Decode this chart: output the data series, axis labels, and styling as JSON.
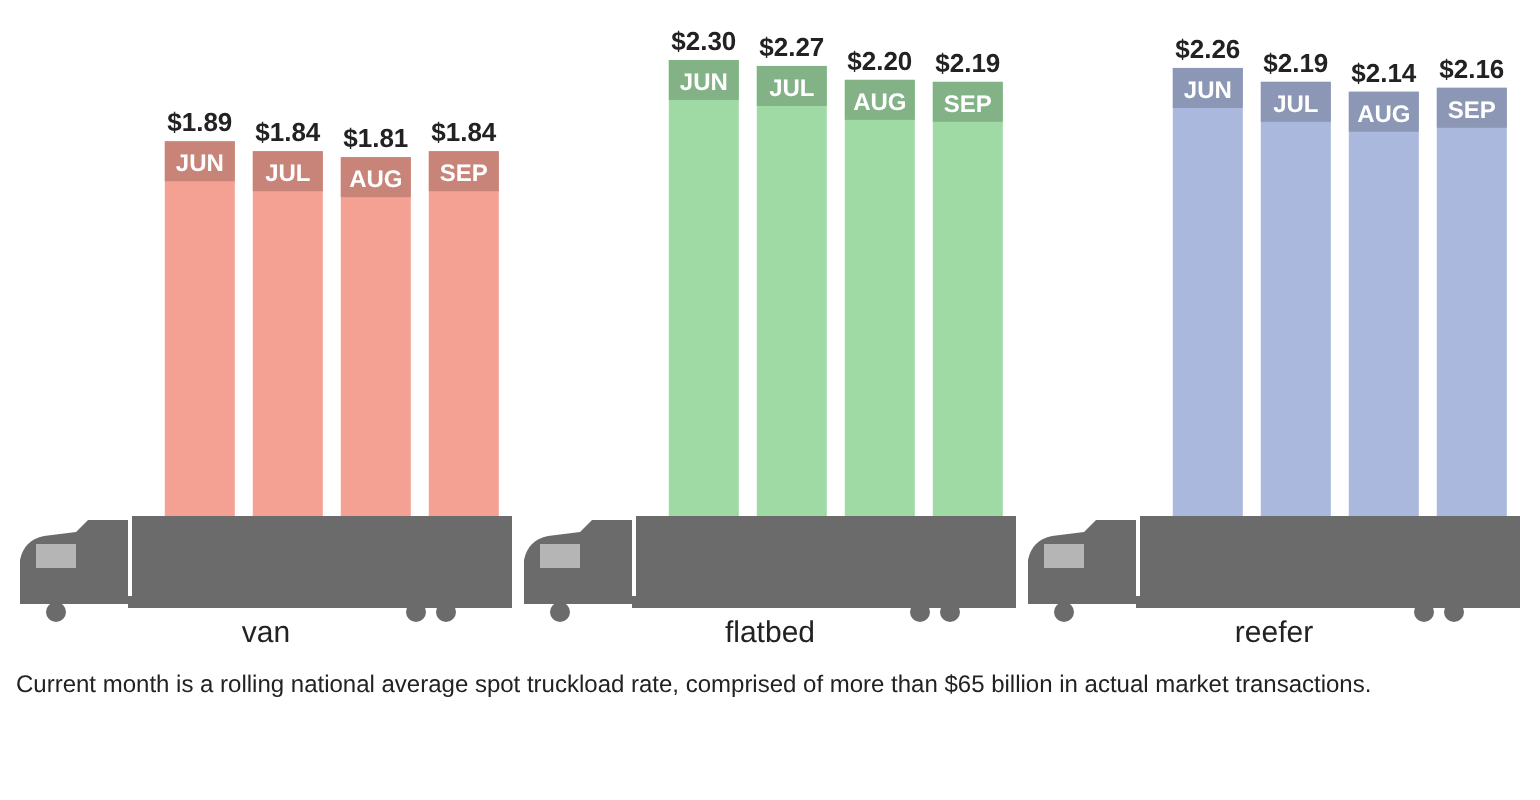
{
  "chart_data": [
    {
      "type": "bar",
      "xlabel": "van",
      "categories": [
        "JUN",
        "JUL",
        "AUG",
        "SEP"
      ],
      "series": [
        {
          "color": "#f4a193",
          "values": [
            1.89,
            1.84,
            1.81,
            1.84
          ],
          "value_labels": [
            "$1.89",
            "$1.84",
            "$1.81",
            "$1.84"
          ]
        }
      ]
    },
    {
      "type": "bar",
      "xlabel": "flatbed",
      "categories": [
        "JUN",
        "JUL",
        "AUG",
        "SEP"
      ],
      "series": [
        {
          "color": "#9fd9a3",
          "values": [
            2.3,
            2.27,
            2.2,
            2.19
          ],
          "value_labels": [
            "$2.30",
            "$2.27",
            "$2.20",
            "$2.19"
          ]
        }
      ]
    },
    {
      "type": "bar",
      "xlabel": "reefer",
      "categories": [
        "JUN",
        "JUL",
        "AUG",
        "SEP"
      ],
      "series": [
        {
          "color": "#a9b8dc",
          "values": [
            2.26,
            2.19,
            2.14,
            2.16
          ],
          "value_labels": [
            "$2.26",
            "$2.19",
            "$2.14",
            "$2.16"
          ]
        }
      ],
      "annotations": [
        "Current month is a rolling national average spot truckload rate, comprised of more than $65 billion in actual market transactions."
      ]
    }
  ]
}
